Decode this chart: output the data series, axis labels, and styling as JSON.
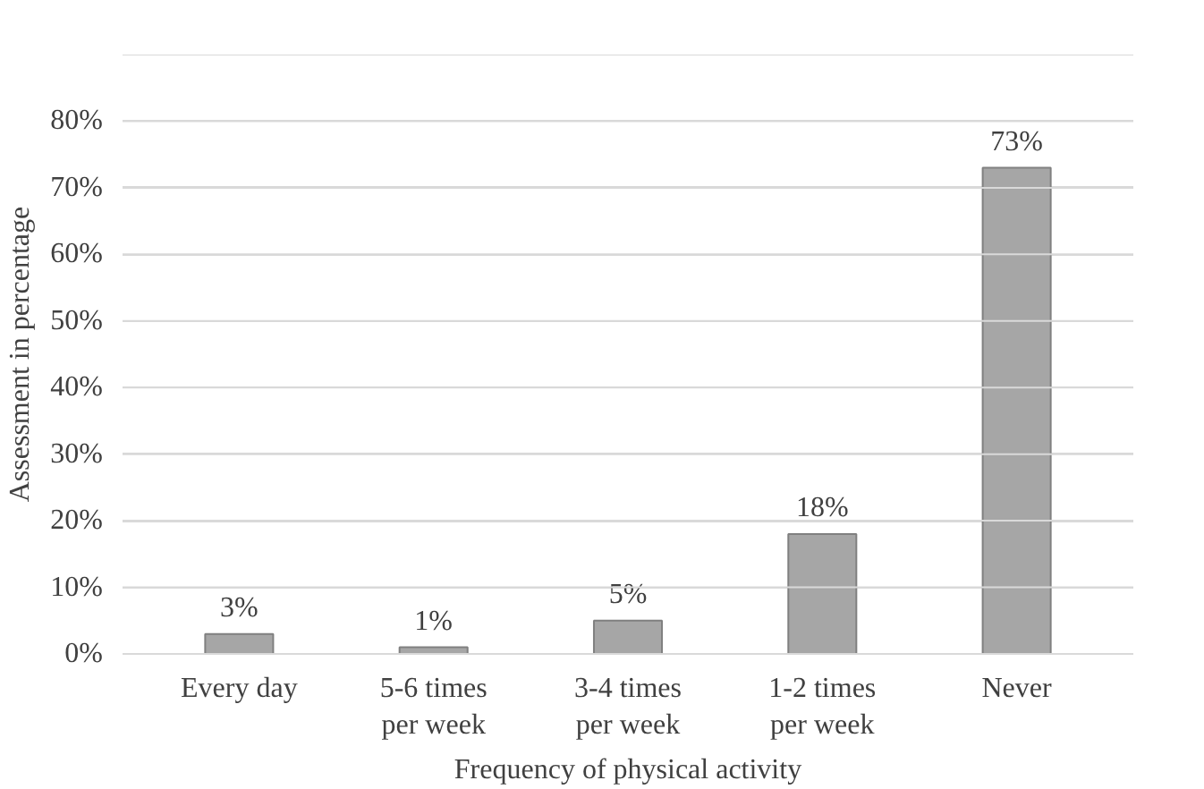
{
  "chart_data": {
    "type": "bar",
    "xlabel": "Frequency of physical activity",
    "ylabel": "Assessment in percentage",
    "categories": [
      "Every day",
      "5-6 times per week",
      "3-4 times per week",
      "1-2 times per week",
      "Never"
    ],
    "values": [
      3,
      1,
      5,
      18,
      73
    ],
    "color": "#a6a6a6",
    "data_labels": true,
    "value_labels": [
      "3%",
      "1%",
      "5%",
      "18%",
      "73%"
    ],
    "ylim": [
      0,
      90
    ],
    "yticks": [
      {
        "value": 0,
        "label": "0%"
      },
      {
        "value": 10,
        "label": "10%"
      },
      {
        "value": 20,
        "label": "20%"
      },
      {
        "value": 30,
        "label": "30%"
      },
      {
        "value": 40,
        "label": "40%"
      },
      {
        "value": 50,
        "label": "50%"
      },
      {
        "value": 60,
        "label": "60%"
      },
      {
        "value": 70,
        "label": "70%"
      },
      {
        "value": 80,
        "label": "80%"
      },
      {
        "value": 90,
        "label": null
      }
    ],
    "grid": "y"
  }
}
